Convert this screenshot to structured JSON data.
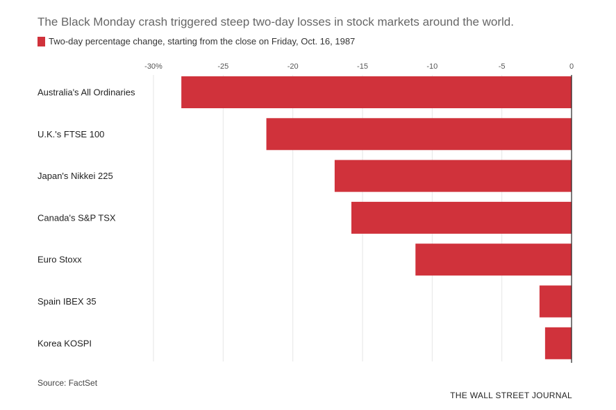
{
  "title": "The Black Monday crash triggered steep two-day losses in stock markets around the world.",
  "source": "Source: FactSet",
  "publisher": "THE WALL STREET JOURNAL",
  "chart_data": {
    "type": "bar",
    "orientation": "horizontal",
    "categories": [
      "Australia's All Ordinaries",
      "U.K.'s FTSE 100",
      "Japan's Nikkei 225",
      "Canada's S&P TSX",
      "Euro Stoxx",
      "Spain IBEX 35",
      "Korea KOSPI"
    ],
    "series": [
      {
        "name": "Two-day percentage change, starting from the close on Friday, Oct. 16, 1987",
        "values": [
          -28.0,
          -21.9,
          -17.0,
          -15.8,
          -11.2,
          -2.3,
          -1.9
        ],
        "color": "#d0323b"
      }
    ],
    "xlim": [
      -30,
      0
    ],
    "xticks": [
      -30,
      -25,
      -20,
      -15,
      -10,
      -5,
      0
    ],
    "xtick_labels": [
      "-30%",
      "-25",
      "-20",
      "-15",
      "-10",
      "-5",
      "0"
    ],
    "axis_position": "top",
    "grid": true,
    "legend_position": "top-left"
  },
  "colors": {
    "bar": "#d0323b",
    "grid": "#e6e6e6",
    "axis": "#222222"
  }
}
